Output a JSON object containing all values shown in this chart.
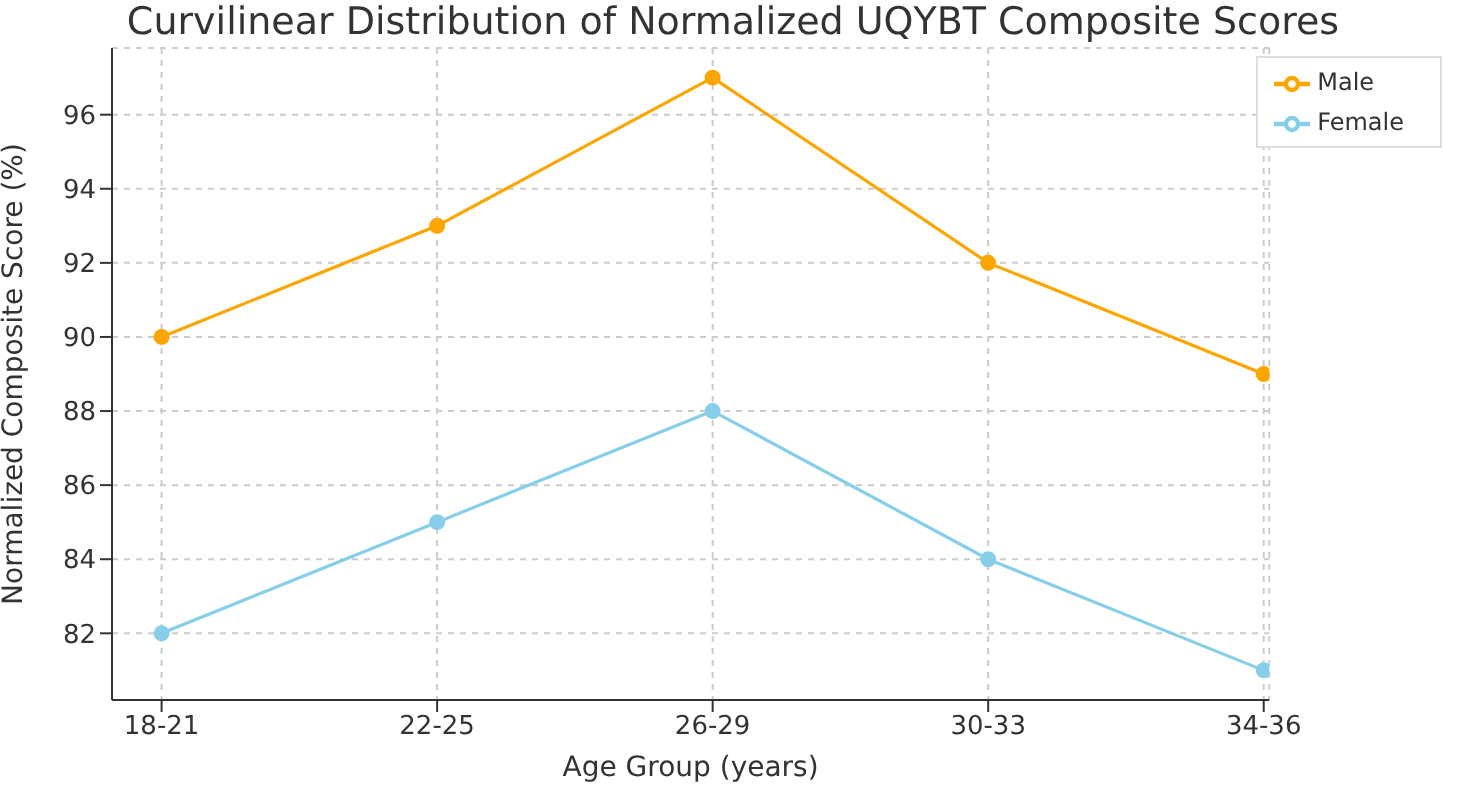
{
  "chart_data": {
    "type": "line",
    "title": "Curvilinear Distribution of Normalized UQYBT Composite Scores",
    "xlabel": "Age Group (years)",
    "ylabel": "Normalized Composite Score (%)",
    "categories": [
      "18-21",
      "22-25",
      "26-29",
      "30-33",
      "34-36"
    ],
    "series": [
      {
        "name": "Male",
        "color": "#ffa500",
        "values": [
          90,
          93,
          97,
          92,
          89
        ]
      },
      {
        "name": "Female",
        "color": "#87ceeb",
        "values": [
          82,
          85,
          88,
          84,
          81
        ]
      }
    ],
    "ylim": [
      80.2,
      97.8
    ],
    "yticks": [
      82,
      84,
      86,
      88,
      90,
      92,
      94,
      96
    ],
    "grid": true,
    "legend": "top right",
    "marker": "circle",
    "line_style": "solid"
  }
}
